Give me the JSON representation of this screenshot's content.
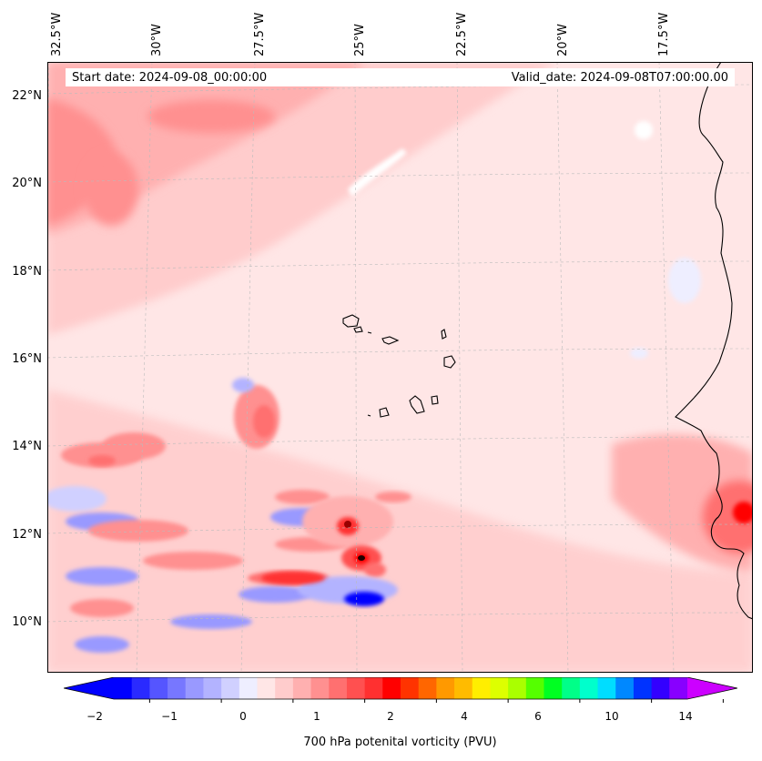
{
  "map": {
    "title_left": "Start date: 2024-09-08_00:00:00",
    "title_right": "Valid_date: 2024-09-08T07:00:00.00",
    "lon_labels": [
      "32.5°W",
      "30°W",
      "27.5°W",
      "25°W",
      "22.5°W",
      "20°W",
      "17.5°W"
    ],
    "lat_labels": [
      "22°N",
      "20°N",
      "18°N",
      "16°N",
      "14°N",
      "12°N",
      "10°N"
    ],
    "variable": "700 hPa potenital vorticity (PVU)"
  },
  "colorbar": {
    "tick_labels": [
      "−2",
      "−1",
      "0",
      "1",
      "2",
      "4",
      "6",
      "10",
      "14"
    ],
    "colors": [
      "#0000ff",
      "#2a2aff",
      "#5555ff",
      "#7777ff",
      "#9999ff",
      "#b3b3ff",
      "#d0d0ff",
      "#eeeeff",
      "#ffe6e6",
      "#ffcccc",
      "#ffb0b0",
      "#ff9090",
      "#ff7070",
      "#ff5050",
      "#ff3030",
      "#ff0000",
      "#ff3300",
      "#ff6600",
      "#ff9900",
      "#ffbb00",
      "#ffee00",
      "#ddff00",
      "#aaff00",
      "#55ff00",
      "#00ff22",
      "#00ff88",
      "#00ffcc",
      "#00ddff",
      "#0088ff",
      "#0033ff",
      "#3300ff",
      "#8800ff"
    ],
    "under_color": "#0000ff",
    "over_color": "#cc00ff"
  }
}
